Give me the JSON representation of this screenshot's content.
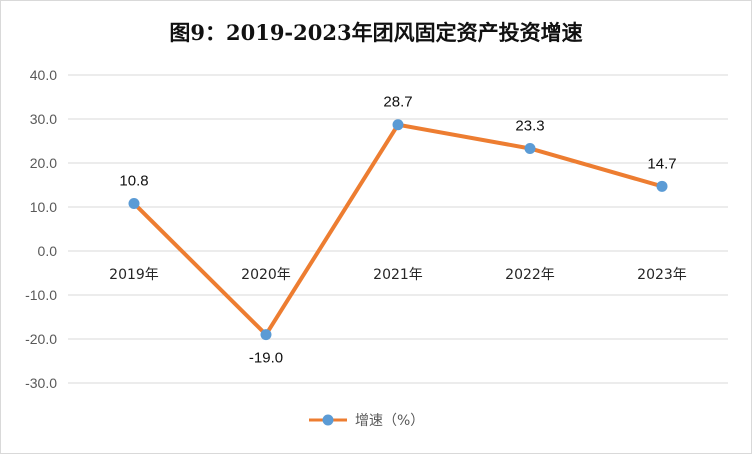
{
  "chart_data": {
    "type": "line",
    "title": "图9：2019-2023年团风固定资产投资增速",
    "categories": [
      "2019年",
      "2020年",
      "2021年",
      "2022年",
      "2023年"
    ],
    "series": [
      {
        "name": "增速（%）",
        "values": [
          10.8,
          -19.0,
          28.7,
          23.3,
          14.7
        ]
      }
    ],
    "data_labels": [
      "10.8",
      "-19.0",
      "28.7",
      "23.3",
      "14.7"
    ],
    "yticks": [
      "40.0",
      "30.0",
      "20.0",
      "10.0",
      "0.0",
      "-10.0",
      "-20.0",
      "-30.0"
    ],
    "ylim": [
      -30,
      40
    ],
    "grid": true,
    "legend": "bottom",
    "colors": {
      "line": "#ed7d31",
      "marker": "#5b9bd5",
      "grid": "#d9d9d9"
    }
  }
}
